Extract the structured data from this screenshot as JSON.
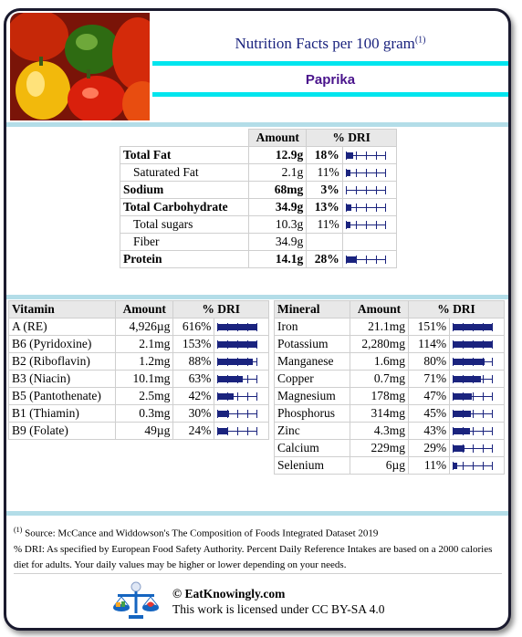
{
  "header": {
    "title": "Nutrition Facts per 100 gram",
    "title_sup": "(1)",
    "food_name": "Paprika",
    "photo_icon": "bell-peppers-photo"
  },
  "macros": {
    "col_amount": "Amount",
    "col_dri": "% DRI",
    "rows": [
      {
        "name": "Total Fat",
        "amount": "12.9g",
        "dri": "18%",
        "bold": true,
        "indent": false,
        "bar": 0.18
      },
      {
        "name": "Saturated Fat",
        "amount": "2.1g",
        "dri": "11%",
        "bold": false,
        "indent": true,
        "bar": 0.11
      },
      {
        "name": "Sodium",
        "amount": "68mg",
        "dri": "3%",
        "bold": true,
        "indent": false,
        "bar": 0.03
      },
      {
        "name": "Total Carbohydrate",
        "amount": "34.9g",
        "dri": "13%",
        "bold": true,
        "indent": false,
        "bar": 0.13
      },
      {
        "name": "Total sugars",
        "amount": "10.3g",
        "dri": "11%",
        "bold": false,
        "indent": true,
        "bar": 0.11
      },
      {
        "name": "Fiber",
        "amount": "34.9g",
        "dri": "",
        "bold": false,
        "indent": true,
        "bar": null
      },
      {
        "name": "Protein",
        "amount": "14.1g",
        "dri": "28%",
        "bold": true,
        "indent": false,
        "bar": 0.28
      }
    ]
  },
  "vitamins": {
    "col_name": "Vitamin",
    "col_amount": "Amount",
    "col_dri": "% DRI",
    "rows": [
      {
        "name": "A (RE)",
        "amount": "4,926µg",
        "dri": "616%",
        "bar": 1.0
      },
      {
        "name": "B6 (Pyridoxine)",
        "amount": "2.1mg",
        "dri": "153%",
        "bar": 1.0
      },
      {
        "name": "B2 (Riboflavin)",
        "amount": "1.2mg",
        "dri": "88%",
        "bar": 0.88
      },
      {
        "name": "B3 (Niacin)",
        "amount": "10.1mg",
        "dri": "63%",
        "bar": 0.63
      },
      {
        "name": "B5 (Pantothenate)",
        "amount": "2.5mg",
        "dri": "42%",
        "bar": 0.42
      },
      {
        "name": "B1 (Thiamin)",
        "amount": "0.3mg",
        "dri": "30%",
        "bar": 0.3
      },
      {
        "name": "B9 (Folate)",
        "amount": "49µg",
        "dri": "24%",
        "bar": 0.24
      }
    ]
  },
  "minerals": {
    "col_name": "Mineral",
    "col_amount": "Amount",
    "col_dri": "% DRI",
    "rows": [
      {
        "name": "Iron",
        "amount": "21.1mg",
        "dri": "151%",
        "bar": 1.0
      },
      {
        "name": "Potassium",
        "amount": "2,280mg",
        "dri": "114%",
        "bar": 1.0
      },
      {
        "name": "Manganese",
        "amount": "1.6mg",
        "dri": "80%",
        "bar": 0.8
      },
      {
        "name": "Copper",
        "amount": "0.7mg",
        "dri": "71%",
        "bar": 0.71
      },
      {
        "name": "Magnesium",
        "amount": "178mg",
        "dri": "47%",
        "bar": 0.47
      },
      {
        "name": "Phosphorus",
        "amount": "314mg",
        "dri": "45%",
        "bar": 0.45
      },
      {
        "name": "Zinc",
        "amount": "4.3mg",
        "dri": "43%",
        "bar": 0.43
      },
      {
        "name": "Calcium",
        "amount": "229mg",
        "dri": "29%",
        "bar": 0.29
      },
      {
        "name": "Selenium",
        "amount": "6µg",
        "dri": "11%",
        "bar": 0.11
      }
    ]
  },
  "footer": {
    "note_sup": "(1)",
    "source": " Source: McCance and Widdowson's The Composition of Foods Integrated Dataset 2019",
    "dri_note": "% DRI: As specified by European Food Safety Authority. Percent Daily Reference Intakes are based on a 2000 calories diet for adults. Your daily values may be higher or lower depending on your needs.",
    "copyright": "© EatKnowingly.com",
    "license": "This work is licensed under CC BY-SA 4.0",
    "logo_icon": "eatknowingly-logo-icon"
  },
  "colors": {
    "bar": "#1a237e",
    "accent_cyan": "#00e5ee",
    "food_name": "#4a148c",
    "title": "#1a237e"
  }
}
